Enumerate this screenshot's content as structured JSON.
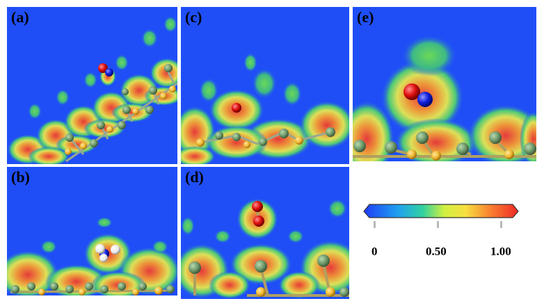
{
  "panels": {
    "a": {
      "label": "(a)"
    },
    "b": {
      "label": "(b)"
    },
    "c": {
      "label": "(c)"
    },
    "d": {
      "label": "(d)"
    },
    "e": {
      "label": "(e)"
    }
  },
  "colorbar": {
    "ticks": [
      "0",
      "0.50",
      "1.00"
    ],
    "tick_values": [
      0,
      0.5,
      1.0
    ],
    "colors": [
      "#1f3cf5",
      "#1fd0d0",
      "#4ee060",
      "#f0f040",
      "#f89030",
      "#f03030"
    ]
  },
  "colors": {
    "background": "#1f4ef7",
    "green_field": "#5fd060",
    "orange_field": "#f0a040",
    "red_field": "#f04030",
    "atom_sulfur": "#f0b830",
    "atom_green": "#6f9a6a",
    "atom_oxygen": "#e01010",
    "atom_nitrogen": "#1020e0",
    "atom_hydrogen": "#f4f4f4"
  }
}
